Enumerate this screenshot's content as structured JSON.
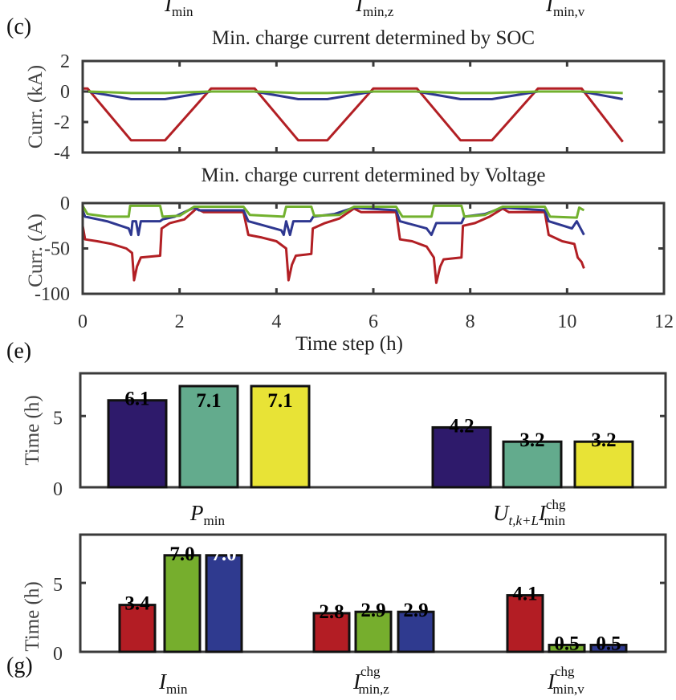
{
  "chart_data": [
    {
      "type": "line",
      "panel_label": "(c)",
      "title": "Min. charge current determined by SOC",
      "ylabel": "Curr. (kA)",
      "xlim": [
        0,
        12
      ],
      "ylim": [
        -4,
        2
      ],
      "yticks": [
        "2",
        "0",
        "-2",
        "-4"
      ],
      "ytick_values": [
        2,
        0,
        -2,
        -4
      ],
      "series": [
        {
          "color": "#B21F24",
          "points": [
            [
              0,
              0.2
            ],
            [
              0.1,
              0.2
            ],
            [
              1.0,
              -3.2
            ],
            [
              1.7,
              -3.2
            ],
            [
              2.65,
              0.2
            ],
            [
              3.55,
              0.2
            ],
            [
              4.45,
              -3.2
            ],
            [
              5.05,
              -3.2
            ],
            [
              6.0,
              0.2
            ],
            [
              6.9,
              0.2
            ],
            [
              7.8,
              -3.2
            ],
            [
              8.45,
              -3.2
            ],
            [
              9.4,
              0.2
            ],
            [
              10.3,
              0.2
            ],
            [
              11.15,
              -3.3
            ]
          ]
        },
        {
          "color": "#2E3790",
          "points": [
            [
              0,
              0
            ],
            [
              0.1,
              0
            ],
            [
              1.0,
              -0.5
            ],
            [
              1.7,
              -0.5
            ],
            [
              2.65,
              0
            ],
            [
              3.55,
              0
            ],
            [
              4.45,
              -0.5
            ],
            [
              5.05,
              -0.5
            ],
            [
              6.0,
              0
            ],
            [
              6.9,
              0
            ],
            [
              7.8,
              -0.5
            ],
            [
              8.45,
              -0.5
            ],
            [
              9.4,
              0
            ],
            [
              10.3,
              0
            ],
            [
              11.15,
              -0.5
            ]
          ]
        },
        {
          "color": "#72B12E",
          "points": [
            [
              0,
              0
            ],
            [
              0.1,
              0
            ],
            [
              1.0,
              -0.1
            ],
            [
              1.7,
              -0.1
            ],
            [
              2.65,
              0
            ],
            [
              3.55,
              0
            ],
            [
              4.45,
              -0.1
            ],
            [
              5.05,
              -0.1
            ],
            [
              6.0,
              0
            ],
            [
              6.9,
              0
            ],
            [
              7.8,
              -0.1
            ],
            [
              8.45,
              -0.1
            ],
            [
              9.4,
              0
            ],
            [
              10.3,
              0
            ],
            [
              11.15,
              -0.1
            ]
          ]
        }
      ]
    },
    {
      "type": "line",
      "title": "Min. charge current determined by Voltage",
      "ylabel": "Curr. (A)",
      "xlabel": "Time step (h)",
      "xlim": [
        0,
        12
      ],
      "ylim": [
        -100,
        0
      ],
      "xticks": [
        "0",
        "2",
        "4",
        "6",
        "8",
        "10",
        "12"
      ],
      "xtick_values": [
        0,
        2,
        4,
        6,
        8,
        10,
        12
      ],
      "yticks": [
        "0",
        "-50",
        "-100"
      ],
      "ytick_values": [
        0,
        -50,
        -100
      ],
      "series": [
        {
          "color": "#B21F24",
          "points": [
            [
              0,
              -25
            ],
            [
              0.05,
              -40
            ],
            [
              0.3,
              -42
            ],
            [
              0.6,
              -45
            ],
            [
              0.9,
              -50
            ],
            [
              1.02,
              -55
            ],
            [
              1.06,
              -85
            ],
            [
              1.12,
              -70
            ],
            [
              1.2,
              -60
            ],
            [
              1.6,
              -58
            ],
            [
              1.63,
              -28
            ],
            [
              1.8,
              -22
            ],
            [
              2.1,
              -18
            ],
            [
              2.35,
              -6
            ],
            [
              2.5,
              -10
            ],
            [
              3.32,
              -10
            ],
            [
              3.42,
              -35
            ],
            [
              3.7,
              -38
            ],
            [
              4.0,
              -42
            ],
            [
              4.2,
              -50
            ],
            [
              4.25,
              -85
            ],
            [
              4.32,
              -68
            ],
            [
              4.4,
              -58
            ],
            [
              4.72,
              -56
            ],
            [
              4.75,
              -28
            ],
            [
              5.0,
              -22
            ],
            [
              5.3,
              -17
            ],
            [
              5.6,
              -6
            ],
            [
              5.75,
              -10
            ],
            [
              6.47,
              -10
            ],
            [
              6.55,
              -40
            ],
            [
              6.8,
              -42
            ],
            [
              7.1,
              -48
            ],
            [
              7.25,
              -60
            ],
            [
              7.3,
              -88
            ],
            [
              7.38,
              -70
            ],
            [
              7.45,
              -62
            ],
            [
              7.82,
              -60
            ],
            [
              7.85,
              -25
            ],
            [
              8.1,
              -22
            ],
            [
              8.4,
              -15
            ],
            [
              8.67,
              -6
            ],
            [
              8.8,
              -10
            ],
            [
              9.54,
              -10
            ],
            [
              9.62,
              -35
            ],
            [
              9.9,
              -42
            ],
            [
              10.15,
              -45
            ],
            [
              10.22,
              -60
            ],
            [
              10.3,
              -65
            ],
            [
              10.35,
              -72
            ]
          ]
        },
        {
          "color": "#2E3790",
          "points": [
            [
              0,
              -8
            ],
            [
              0.05,
              -15
            ],
            [
              0.5,
              -20
            ],
            [
              0.95,
              -28
            ],
            [
              1.0,
              -35
            ],
            [
              1.03,
              -20
            ],
            [
              1.1,
              -20
            ],
            [
              1.15,
              -35
            ],
            [
              1.2,
              -20
            ],
            [
              1.6,
              -20
            ],
            [
              1.65,
              -18
            ],
            [
              1.9,
              -15
            ],
            [
              2.3,
              -5
            ],
            [
              2.4,
              -8
            ],
            [
              3.32,
              -8
            ],
            [
              3.42,
              -20
            ],
            [
              4.1,
              -30
            ],
            [
              4.15,
              -35
            ],
            [
              4.2,
              -20
            ],
            [
              4.28,
              -35
            ],
            [
              4.35,
              -20
            ],
            [
              4.7,
              -20
            ],
            [
              4.76,
              -15
            ],
            [
              5.2,
              -12
            ],
            [
              5.6,
              -5
            ],
            [
              6.47,
              -8
            ],
            [
              6.55,
              -20
            ],
            [
              7.1,
              -28
            ],
            [
              7.2,
              -35
            ],
            [
              7.3,
              -22
            ],
            [
              7.82,
              -22
            ],
            [
              7.88,
              -15
            ],
            [
              8.3,
              -12
            ],
            [
              8.67,
              -5
            ],
            [
              9.54,
              -8
            ],
            [
              9.62,
              -20
            ],
            [
              10.1,
              -28
            ],
            [
              10.2,
              -20
            ],
            [
              10.35,
              -35
            ]
          ]
        },
        {
          "color": "#72B12E",
          "points": [
            [
              0,
              -3
            ],
            [
              0.1,
              -12
            ],
            [
              0.5,
              -15
            ],
            [
              0.95,
              -15
            ],
            [
              0.98,
              -3
            ],
            [
              1.6,
              -3
            ],
            [
              1.65,
              -15
            ],
            [
              2.0,
              -14
            ],
            [
              2.3,
              -4
            ],
            [
              3.32,
              -4
            ],
            [
              3.45,
              -13
            ],
            [
              4.15,
              -15
            ],
            [
              4.2,
              -4
            ],
            [
              4.72,
              -4
            ],
            [
              4.78,
              -14
            ],
            [
              5.3,
              -13
            ],
            [
              5.6,
              -4
            ],
            [
              6.47,
              -4
            ],
            [
              6.6,
              -15
            ],
            [
              7.2,
              -15
            ],
            [
              7.25,
              -3
            ],
            [
              7.82,
              -3
            ],
            [
              7.88,
              -15
            ],
            [
              8.3,
              -13
            ],
            [
              8.67,
              -4
            ],
            [
              9.54,
              -4
            ],
            [
              9.65,
              -15
            ],
            [
              10.2,
              -16
            ],
            [
              10.25,
              -5
            ],
            [
              10.35,
              -8
            ]
          ]
        }
      ]
    },
    {
      "type": "bar",
      "panel_label": "(e)",
      "ylabel": "Time (h)",
      "ylim": [
        0,
        8
      ],
      "yticks": [
        "5",
        "0"
      ],
      "ytick_values": [
        5,
        0
      ],
      "groups": [
        {
          "label": {
            "main": "P",
            "sub": "min"
          },
          "bars": [
            {
              "value": 6.1,
              "label": "6.1",
              "color": "#2E1A6B",
              "label_color": "#000000"
            },
            {
              "value": 7.1,
              "label": "7.1",
              "color": "#63AB8D",
              "label_color": "#000000"
            },
            {
              "value": 7.1,
              "label": "7.1",
              "color": "#E8E336",
              "label_color": "#000000"
            }
          ]
        },
        {
          "label": {
            "main": "U",
            "sub": "t,k+L",
            "main2": "I",
            "sup2": "chg",
            "sub2": "min"
          },
          "bars": [
            {
              "value": 4.2,
              "label": "4.2",
              "color": "#2E1A6B",
              "label_color": "#000000"
            },
            {
              "value": 3.2,
              "label": "3.2",
              "color": "#63AB8D",
              "label_color": "#000000"
            },
            {
              "value": 3.2,
              "label": "3.2",
              "color": "#E8E336",
              "label_color": "#000000"
            }
          ]
        }
      ]
    },
    {
      "type": "bar",
      "panel_label": "(g)",
      "ylabel": "Time (h)",
      "ylim": [
        0,
        8.5
      ],
      "yticks": [
        "5",
        "0"
      ],
      "ytick_values": [
        5,
        0
      ],
      "groups": [
        {
          "label": {
            "main": "I",
            "sub": "min"
          },
          "bars": [
            {
              "value": 3.4,
              "label": "3.4",
              "color": "#B31D24",
              "label_color": "#000000"
            },
            {
              "value": 7.0,
              "label": "7.0",
              "color": "#76AE2D",
              "label_color": "#000000"
            },
            {
              "value": 7.0,
              "label": "7.0",
              "color": "#2F3A8F",
              "label_color": "#FFFFFF"
            }
          ]
        },
        {
          "label": {
            "main": "I",
            "sup": "chg",
            "sub": "min,z"
          },
          "bars": [
            {
              "value": 2.8,
              "label": "2.8",
              "color": "#B31D24",
              "label_color": "#000000"
            },
            {
              "value": 2.9,
              "label": "2.9",
              "color": "#76AE2D",
              "label_color": "#000000"
            },
            {
              "value": 2.9,
              "label": "2.9",
              "color": "#2F3A8F",
              "label_color": "#000000"
            }
          ]
        },
        {
          "label": {
            "main": "I",
            "sup": "chg",
            "sub": "min,v"
          },
          "bars": [
            {
              "value": 4.1,
              "label": "4.1",
              "color": "#B31D24",
              "label_color": "#000000"
            },
            {
              "value": 0.5,
              "label": "0.5",
              "color": "#76AE2D",
              "label_color": "#000000"
            },
            {
              "value": 0.5,
              "label": "0.5",
              "color": "#2F3A8F",
              "label_color": "#000000"
            }
          ]
        }
      ]
    }
  ],
  "top_cut_labels": [
    {
      "main": "I",
      "sub": "min"
    },
    {
      "main": "I",
      "sub": "min,z"
    },
    {
      "main": "I",
      "sub": "min,v"
    }
  ]
}
